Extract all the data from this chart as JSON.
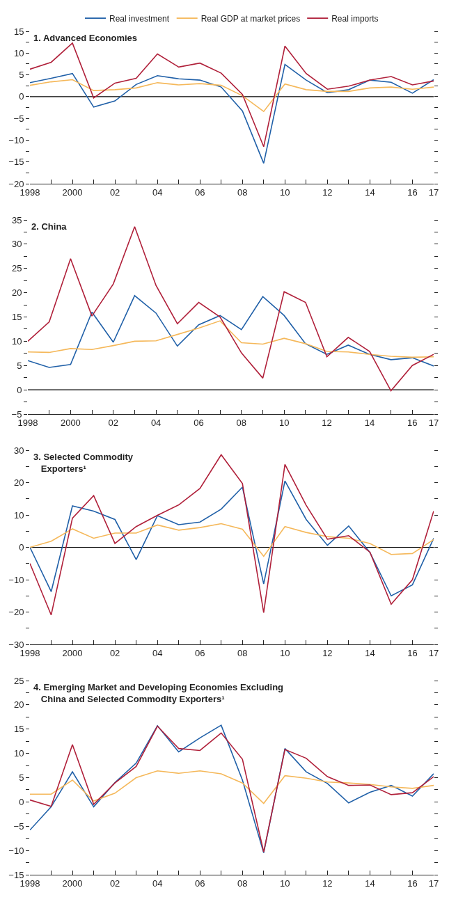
{
  "chart_data": [
    {
      "type": "line",
      "title": "1. Advanced Economies",
      "x": [
        1998,
        1999,
        2000,
        2001,
        2002,
        2003,
        2004,
        2005,
        2006,
        2007,
        2008,
        2009,
        2010,
        2011,
        2012,
        2013,
        2014,
        2015,
        2016,
        2017
      ],
      "legend": "top",
      "xlim": [
        1998,
        2017
      ],
      "xticks": [
        {
          "value": 1998,
          "label": "1998"
        },
        {
          "value": 1999,
          "label": null
        },
        {
          "value": 2000,
          "label": "2000"
        },
        {
          "value": 2001,
          "label": null
        },
        {
          "value": 2002,
          "label": "02"
        },
        {
          "value": 2003,
          "label": null
        },
        {
          "value": 2004,
          "label": "04"
        },
        {
          "value": 2005,
          "label": null
        },
        {
          "value": 2006,
          "label": "06"
        },
        {
          "value": 2007,
          "label": null
        },
        {
          "value": 2008,
          "label": "08"
        },
        {
          "value": 2009,
          "label": null
        },
        {
          "value": 2010,
          "label": "10"
        },
        {
          "value": 2011,
          "label": null
        },
        {
          "value": 2012,
          "label": "12"
        },
        {
          "value": 2013,
          "label": null
        },
        {
          "value": 2014,
          "label": "14"
        },
        {
          "value": 2015,
          "label": null
        },
        {
          "value": 2016,
          "label": "16"
        },
        {
          "value": 2017,
          "label": "17"
        }
      ],
      "ylim": [
        -20,
        15
      ],
      "yticks": [
        -20,
        {
          "value": -17.5,
          "label": null
        },
        -15,
        {
          "value": -12.5,
          "label": null
        },
        -10,
        {
          "value": -7.5,
          "label": null
        },
        -5,
        {
          "value": -2.5,
          "label": null
        },
        0,
        {
          "value": 2.5,
          "label": null
        },
        5,
        {
          "value": 7.5,
          "label": null
        },
        10,
        {
          "value": 12.5,
          "label": null
        },
        15
      ],
      "ref_lines": [
        {
          "axis": "y",
          "value": 0,
          "color": "#000000"
        }
      ],
      "series": [
        {
          "name": "Real investment",
          "color": "#2060a8",
          "values": [
            3.2,
            4.2,
            5.3,
            -2.4,
            -1.0,
            2.8,
            4.8,
            4.1,
            3.8,
            2.2,
            -3.3,
            -15.3,
            7.4,
            3.8,
            0.9,
            1.6,
            3.8,
            3.3,
            0.8,
            3.9
          ]
        },
        {
          "name": "Real GDP at market prices",
          "color": "#f5b85a",
          "values": [
            2.6,
            3.4,
            3.9,
            1.4,
            1.6,
            2.0,
            3.2,
            2.7,
            3.0,
            2.6,
            0.2,
            -3.4,
            2.9,
            1.6,
            1.2,
            1.2,
            2.0,
            2.2,
            1.7,
            2.2
          ]
        },
        {
          "name": "Real imports",
          "color": "#b0203a",
          "values": [
            6.3,
            7.9,
            12.3,
            -0.3,
            3.1,
            4.2,
            9.8,
            6.8,
            7.7,
            5.4,
            0.5,
            -11.5,
            11.6,
            5.3,
            1.7,
            2.4,
            3.8,
            4.6,
            2.7,
            3.6
          ]
        }
      ]
    },
    {
      "type": "line",
      "title": "2. China",
      "x": [
        1998,
        1999,
        2000,
        2001,
        2002,
        2003,
        2004,
        2005,
        2006,
        2007,
        2008,
        2009,
        2010,
        2011,
        2012,
        2013,
        2014,
        2015,
        2016,
        2017
      ],
      "xlim": [
        1998,
        2017
      ],
      "xticks": [
        {
          "value": 1998,
          "label": "1998"
        },
        {
          "value": 1999,
          "label": null
        },
        {
          "value": 2000,
          "label": "2000"
        },
        {
          "value": 2001,
          "label": null
        },
        {
          "value": 2002,
          "label": "02"
        },
        {
          "value": 2003,
          "label": null
        },
        {
          "value": 2004,
          "label": "04"
        },
        {
          "value": 2005,
          "label": null
        },
        {
          "value": 2006,
          "label": "06"
        },
        {
          "value": 2007,
          "label": null
        },
        {
          "value": 2008,
          "label": "08"
        },
        {
          "value": 2009,
          "label": null
        },
        {
          "value": 2010,
          "label": "10"
        },
        {
          "value": 2011,
          "label": null
        },
        {
          "value": 2012,
          "label": "12"
        },
        {
          "value": 2013,
          "label": null
        },
        {
          "value": 2014,
          "label": "14"
        },
        {
          "value": 2015,
          "label": null
        },
        {
          "value": 2016,
          "label": "16"
        },
        {
          "value": 2017,
          "label": "17"
        }
      ],
      "ylim": [
        -5,
        35
      ],
      "yticks": [
        -5,
        {
          "value": -2.5,
          "label": null
        },
        0,
        {
          "value": 2.5,
          "label": null
        },
        5,
        {
          "value": 7.5,
          "label": null
        },
        10,
        {
          "value": 12.5,
          "label": null
        },
        15,
        {
          "value": 17.5,
          "label": null
        },
        20,
        {
          "value": 22.5,
          "label": null
        },
        25,
        {
          "value": 27.5,
          "label": null
        },
        30,
        {
          "value": 32.5,
          "label": null
        },
        35
      ],
      "ref_lines": [
        {
          "axis": "y",
          "value": 0,
          "color": "#000000"
        }
      ],
      "series": [
        {
          "color": "#2060a8",
          "values": [
            6.0,
            4.6,
            5.2,
            16.0,
            9.8,
            19.4,
            15.8,
            9.0,
            13.4,
            15.3,
            12.4,
            19.2,
            15.3,
            9.5,
            7.3,
            9.2,
            7.3,
            6.2,
            6.6,
            4.9
          ]
        },
        {
          "color": "#f5b85a",
          "values": [
            7.8,
            7.7,
            8.5,
            8.3,
            9.1,
            10.0,
            10.1,
            11.4,
            12.7,
            14.2,
            9.7,
            9.4,
            10.6,
            9.5,
            7.9,
            7.8,
            7.3,
            6.9,
            6.7,
            6.8
          ]
        },
        {
          "color": "#b0203a",
          "values": [
            10.0,
            14.0,
            27.0,
            15.2,
            21.8,
            33.6,
            21.5,
            13.6,
            18.0,
            15.0,
            7.6,
            2.4,
            20.2,
            18.0,
            6.8,
            10.8,
            7.9,
            -0.2,
            5.0,
            7.3
          ]
        }
      ]
    },
    {
      "type": "line",
      "title": "3. Selected Commodity\nExporters¹",
      "x": [
        1998,
        1999,
        2000,
        2001,
        2002,
        2003,
        2004,
        2005,
        2006,
        2007,
        2008,
        2009,
        2010,
        2011,
        2012,
        2013,
        2014,
        2015,
        2016,
        2017
      ],
      "xlim": [
        1998,
        2017
      ],
      "xticks": [
        {
          "value": 1998,
          "label": "1998"
        },
        {
          "value": 1999,
          "label": null
        },
        {
          "value": 2000,
          "label": "2000"
        },
        {
          "value": 2001,
          "label": null
        },
        {
          "value": 2002,
          "label": "02"
        },
        {
          "value": 2003,
          "label": null
        },
        {
          "value": 2004,
          "label": "04"
        },
        {
          "value": 2005,
          "label": null
        },
        {
          "value": 2006,
          "label": "06"
        },
        {
          "value": 2007,
          "label": null
        },
        {
          "value": 2008,
          "label": "08"
        },
        {
          "value": 2009,
          "label": null
        },
        {
          "value": 2010,
          "label": "10"
        },
        {
          "value": 2011,
          "label": null
        },
        {
          "value": 2012,
          "label": "12"
        },
        {
          "value": 2013,
          "label": null
        },
        {
          "value": 2014,
          "label": "14"
        },
        {
          "value": 2015,
          "label": null
        },
        {
          "value": 2016,
          "label": "16"
        },
        {
          "value": 2017,
          "label": "17"
        }
      ],
      "ylim": [
        -30,
        30
      ],
      "yticks": [
        -30,
        {
          "value": -25,
          "label": null
        },
        -20,
        {
          "value": -15,
          "label": null
        },
        -10,
        {
          "value": -5,
          "label": null
        },
        0,
        {
          "value": 5,
          "label": null
        },
        10,
        {
          "value": 15,
          "label": null
        },
        20,
        {
          "value": 25,
          "label": null
        },
        30
      ],
      "ref_lines": [
        {
          "axis": "y",
          "value": 0,
          "color": "#000000"
        }
      ],
      "series": [
        {
          "color": "#2060a8",
          "values": [
            0.0,
            -13.7,
            12.8,
            11.2,
            8.6,
            -3.8,
            9.8,
            7.0,
            7.8,
            11.8,
            18.6,
            -11.3,
            20.5,
            8.6,
            0.6,
            6.6,
            -1.6,
            -15.0,
            -11.6,
            2.8
          ]
        },
        {
          "color": "#f5b85a",
          "values": [
            0.0,
            1.9,
            5.7,
            2.8,
            4.4,
            4.4,
            6.9,
            5.3,
            6.1,
            7.3,
            5.6,
            -2.8,
            6.4,
            4.6,
            3.3,
            2.8,
            1.2,
            -2.2,
            -1.9,
            2.4
          ]
        },
        {
          "color": "#b0203a",
          "values": [
            -5.0,
            -20.9,
            9.0,
            16.0,
            1.2,
            6.4,
            9.9,
            13.1,
            18.2,
            28.6,
            19.7,
            -20.2,
            25.6,
            13.0,
            2.5,
            3.6,
            -1.5,
            -17.6,
            -10.0,
            11.2
          ]
        }
      ]
    },
    {
      "type": "line",
      "title": "4. Emerging Market and Developing Economies Excluding\nChina and Selected Commodity Exporters¹",
      "x": [
        1998,
        1999,
        2000,
        2001,
        2002,
        2003,
        2004,
        2005,
        2006,
        2007,
        2008,
        2009,
        2010,
        2011,
        2012,
        2013,
        2014,
        2015,
        2016,
        2017
      ],
      "xlim": [
        1998,
        2017
      ],
      "xticks": [
        {
          "value": 1998,
          "label": "1998"
        },
        {
          "value": 1999,
          "label": null
        },
        {
          "value": 2000,
          "label": "2000"
        },
        {
          "value": 2001,
          "label": null
        },
        {
          "value": 2002,
          "label": "02"
        },
        {
          "value": 2003,
          "label": null
        },
        {
          "value": 2004,
          "label": "04"
        },
        {
          "value": 2005,
          "label": null
        },
        {
          "value": 2006,
          "label": "06"
        },
        {
          "value": 2007,
          "label": null
        },
        {
          "value": 2008,
          "label": "08"
        },
        {
          "value": 2009,
          "label": null
        },
        {
          "value": 2010,
          "label": "10"
        },
        {
          "value": 2011,
          "label": null
        },
        {
          "value": 2012,
          "label": "12"
        },
        {
          "value": 2013,
          "label": null
        },
        {
          "value": 2014,
          "label": "14"
        },
        {
          "value": 2015,
          "label": null
        },
        {
          "value": 2016,
          "label": "16"
        },
        {
          "value": 2017,
          "label": "17"
        }
      ],
      "ylim": [
        -15,
        25
      ],
      "yticks": [
        -15,
        {
          "value": -12.5,
          "label": null
        },
        -10,
        {
          "value": -7.5,
          "label": null
        },
        -5,
        {
          "value": -2.5,
          "label": null
        },
        0,
        {
          "value": 2.5,
          "label": null
        },
        5,
        {
          "value": 7.5,
          "label": null
        },
        10,
        {
          "value": 12.5,
          "label": null
        },
        15,
        {
          "value": 17.5,
          "label": null
        },
        20,
        {
          "value": 22.5,
          "label": null
        },
        25
      ],
      "series": [
        {
          "color": "#2060a8",
          "values": [
            -5.8,
            -1.0,
            6.2,
            -1.0,
            4.0,
            8.0,
            15.7,
            10.3,
            13.2,
            15.8,
            4.5,
            -10.5,
            11.0,
            6.2,
            3.8,
            -0.2,
            2.0,
            3.4,
            1.2,
            5.8
          ]
        },
        {
          "color": "#f5b85a",
          "values": [
            1.6,
            1.6,
            4.5,
            0.2,
            1.8,
            5.0,
            6.4,
            5.9,
            6.4,
            5.8,
            3.9,
            -0.3,
            5.4,
            4.9,
            4.1,
            3.9,
            3.6,
            3.1,
            2.8,
            3.4
          ]
        },
        {
          "color": "#b0203a",
          "values": [
            0.4,
            -0.9,
            11.8,
            -0.5,
            3.9,
            7.3,
            15.6,
            11.0,
            10.6,
            14.2,
            8.8,
            -10.3,
            10.8,
            9.0,
            5.2,
            3.4,
            3.5,
            1.5,
            1.9,
            5.2
          ]
        }
      ]
    }
  ]
}
